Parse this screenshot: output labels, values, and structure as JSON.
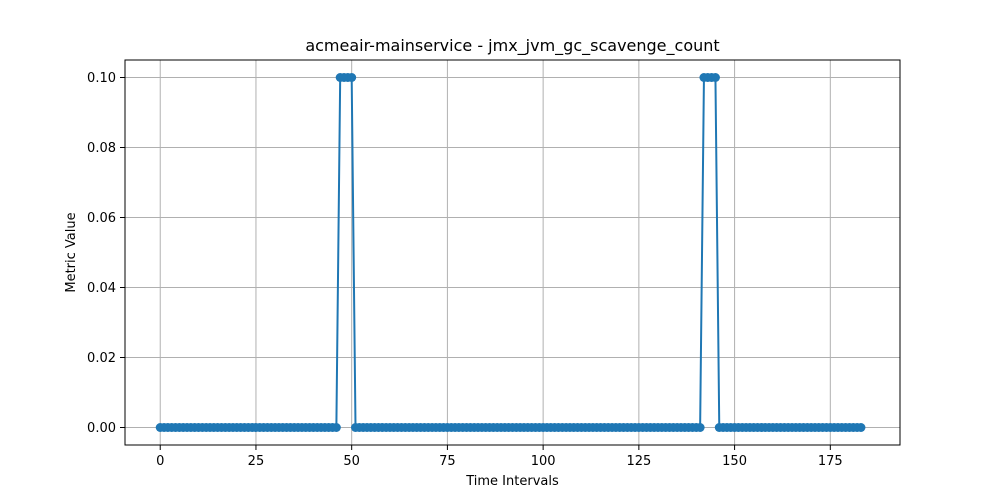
{
  "chart_data": {
    "type": "line",
    "title": "acmeair-mainservice - jmx_jvm_gc_scavenge_count",
    "xlabel": "Time Intervals",
    "ylabel": "Metric Value",
    "xlim": [
      -9.2,
      193.2
    ],
    "ylim": [
      -0.005,
      0.105
    ],
    "x_ticks": [
      0,
      25,
      50,
      75,
      100,
      125,
      150,
      175
    ],
    "x_tick_labels": [
      "0",
      "25",
      "50",
      "75",
      "100",
      "125",
      "150",
      "175"
    ],
    "y_ticks": [
      0.0,
      0.02,
      0.04,
      0.06,
      0.08,
      0.1
    ],
    "y_tick_labels": [
      "0.00",
      "0.02",
      "0.04",
      "0.06",
      "0.08",
      "0.10"
    ],
    "grid": true,
    "series": [
      {
        "color": "#1f77b4",
        "marker": "circle",
        "x_start": 0,
        "x_step": 1,
        "values": [
          0,
          0,
          0,
          0,
          0,
          0,
          0,
          0,
          0,
          0,
          0,
          0,
          0,
          0,
          0,
          0,
          0,
          0,
          0,
          0,
          0,
          0,
          0,
          0,
          0,
          0,
          0,
          0,
          0,
          0,
          0,
          0,
          0,
          0,
          0,
          0,
          0,
          0,
          0,
          0,
          0,
          0,
          0,
          0,
          0,
          0,
          0,
          0.1,
          0.1,
          0.1,
          0.1,
          0,
          0,
          0,
          0,
          0,
          0,
          0,
          0,
          0,
          0,
          0,
          0,
          0,
          0,
          0,
          0,
          0,
          0,
          0,
          0,
          0,
          0,
          0,
          0,
          0,
          0,
          0,
          0,
          0,
          0,
          0,
          0,
          0,
          0,
          0,
          0,
          0,
          0,
          0,
          0,
          0,
          0,
          0,
          0,
          0,
          0,
          0,
          0,
          0,
          0,
          0,
          0,
          0,
          0,
          0,
          0,
          0,
          0,
          0,
          0,
          0,
          0,
          0,
          0,
          0,
          0,
          0,
          0,
          0,
          0,
          0,
          0,
          0,
          0,
          0,
          0,
          0,
          0,
          0,
          0,
          0,
          0,
          0,
          0,
          0,
          0,
          0,
          0,
          0,
          0,
          0,
          0.1,
          0.1,
          0.1,
          0.1,
          0,
          0,
          0,
          0,
          0,
          0,
          0,
          0,
          0,
          0,
          0,
          0,
          0,
          0,
          0,
          0,
          0,
          0,
          0,
          0,
          0,
          0,
          0,
          0,
          0,
          0,
          0,
          0,
          0,
          0,
          0,
          0,
          0,
          0,
          0,
          0,
          0,
          0
        ]
      }
    ]
  }
}
